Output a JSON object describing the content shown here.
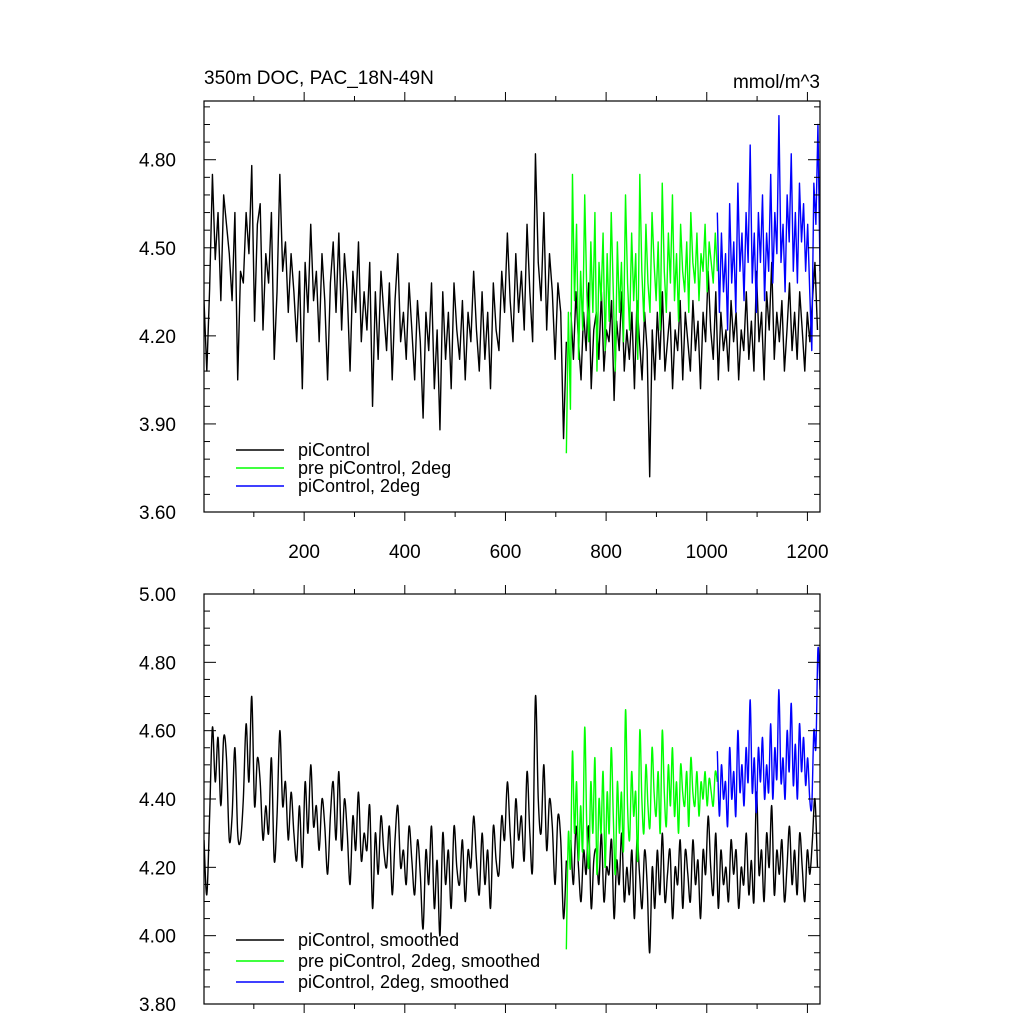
{
  "figure": {
    "title_left": "350m DOC, PAC_18N-49N",
    "title_right": "mmol/m^3"
  },
  "chart_data": [
    {
      "type": "line",
      "xlim": [
        1,
        1225
      ],
      "ylim": [
        3.6,
        5.0
      ],
      "x_ticks": [
        200,
        400,
        600,
        800,
        1000,
        1200
      ],
      "y_ticks": [
        3.6,
        3.9,
        4.2,
        4.5,
        4.8
      ],
      "y_tick_labels": [
        "3.60",
        "3.90",
        "4.20",
        "4.50",
        "4.80"
      ],
      "show_x_tick_labels": true,
      "series": [
        {
          "name": "piControl",
          "color": "#000000",
          "x_start": 1,
          "values": [
            4.32,
            4.08,
            4.36,
            4.75,
            4.46,
            4.62,
            4.32,
            4.68,
            4.58,
            4.48,
            4.32,
            4.62,
            4.05,
            4.42,
            4.38,
            4.62,
            4.48,
            4.78,
            4.25,
            4.58,
            4.65,
            4.22,
            4.48,
            4.38,
            4.62,
            4.12,
            4.35,
            4.75,
            4.42,
            4.52,
            4.28,
            4.48,
            4.35,
            4.18,
            4.42,
            4.02,
            4.45,
            4.28,
            4.58,
            4.32,
            4.42,
            4.18,
            4.48,
            4.32,
            4.05,
            4.38,
            4.52,
            4.28,
            4.55,
            4.22,
            4.48,
            4.35,
            4.08,
            4.42,
            4.28,
            4.52,
            4.18,
            4.35,
            4.22,
            4.45,
            3.96,
            4.35,
            4.12,
            4.42,
            4.28,
            4.15,
            4.38,
            4.05,
            4.32,
            4.48,
            4.18,
            4.28,
            4.12,
            4.38,
            4.22,
            4.05,
            4.32,
            4.18,
            3.92,
            4.28,
            4.15,
            4.38,
            4.02,
            4.22,
            3.88,
            4.35,
            4.12,
            4.28,
            4.02,
            4.38,
            4.22,
            4.12,
            4.32,
            4.05,
            4.28,
            4.18,
            4.42,
            4.22,
            4.08,
            4.35,
            4.12,
            4.28,
            4.02,
            4.38,
            4.22,
            4.15,
            4.42,
            4.28,
            4.55,
            4.32,
            4.18,
            4.48,
            4.28,
            4.42,
            4.22,
            4.58,
            4.35,
            4.18,
            4.82,
            4.45,
            4.32,
            4.62,
            4.22,
            4.48,
            4.35,
            4.12,
            4.38,
            4.28,
            3.85,
            4.18
          ],
          "smooth": false
        },
        {
          "name": "piControl",
          "color": "#000000",
          "x_start": 730,
          "values": [
            4.28,
            4.12,
            4.35,
            4.18,
            4.05,
            4.28,
            4.15,
            4.38,
            4.02,
            4.22,
            4.28,
            4.12,
            4.35,
            4.08,
            4.22,
            4.18,
            4.32,
            3.98,
            4.25,
            4.15,
            4.35,
            4.08,
            4.22,
            4.12,
            4.28,
            4.02,
            4.32,
            4.18,
            4.05,
            4.28,
            4.15,
            3.72,
            4.22,
            4.05,
            4.28,
            4.12,
            4.35,
            4.08,
            4.18,
            4.28,
            4.02,
            4.22,
            4.15,
            4.32,
            4.05,
            4.28,
            4.18,
            4.08,
            4.32,
            4.15,
            4.25,
            4.02,
            4.28,
            4.18,
            4.42,
            4.22,
            4.12,
            4.35,
            4.05,
            4.28,
            4.15,
            4.22,
            4.08,
            4.32,
            4.18,
            4.28,
            4.05,
            4.22,
            4.15,
            4.35,
            4.12,
            4.25,
            4.08,
            4.42,
            4.18,
            4.28,
            4.05,
            4.35,
            4.22,
            4.45,
            4.12,
            4.28,
            4.18,
            4.32,
            4.08,
            4.22,
            4.38,
            4.15,
            4.28,
            4.12,
            4.35,
            4.22,
            4.08,
            4.28,
            4.18,
            4.32,
            4.45,
            4.22
          ],
          "smooth": false
        },
        {
          "name": "pre piControl, 2deg",
          "color": "#00ff00",
          "x_start": 721,
          "values": [
            3.8,
            4.28,
            3.95,
            4.75,
            4.32,
            4.58,
            4.12,
            4.42,
            4.22,
            4.68,
            4.35,
            4.18,
            4.52,
            4.28,
            4.62,
            4.08,
            4.45,
            4.32,
            4.55,
            4.15,
            4.48,
            4.25,
            4.62,
            4.35,
            4.08,
            4.52,
            4.28,
            4.45,
            4.18,
            4.68,
            4.38,
            4.22,
            4.55,
            4.32,
            4.48,
            4.12,
            4.75,
            4.42,
            4.25,
            4.58,
            4.38,
            4.28,
            4.62,
            4.45,
            4.32,
            4.52,
            4.22,
            4.72,
            4.42,
            4.28,
            4.55,
            4.38,
            4.68,
            4.32,
            4.48,
            4.25,
            4.58,
            4.42,
            4.35,
            4.52,
            4.28,
            4.62,
            4.45,
            4.38,
            4.55,
            4.32,
            4.48,
            4.42,
            4.58,
            4.35,
            4.52,
            4.45,
            4.38,
            4.55,
            4.42
          ],
          "smooth": false
        },
        {
          "name": "piControl, 2deg",
          "color": "#0000ff",
          "x_start": 1021,
          "values": [
            4.62,
            4.28,
            4.55,
            4.35,
            4.48,
            4.22,
            4.65,
            4.38,
            4.52,
            4.28,
            4.72,
            4.42,
            4.55,
            4.32,
            4.62,
            4.45,
            4.85,
            4.38,
            4.55,
            4.28,
            4.62,
            4.45,
            4.68,
            4.32,
            4.55,
            4.42,
            4.75,
            4.38,
            4.62,
            4.48,
            4.95,
            4.45,
            4.58,
            4.35,
            4.68,
            4.52,
            4.82,
            4.42,
            4.62,
            4.38,
            4.72,
            4.52,
            4.65,
            4.42,
            4.58,
            4.35,
            4.15,
            4.72,
            4.58,
            4.92,
            4.42
          ],
          "smooth": false
        }
      ],
      "legend": {
        "placement": "bottom-left",
        "entries": [
          {
            "label": "piControl",
            "color": "#000000"
          },
          {
            "label": "pre piControl, 2deg",
            "color": "#00ff00"
          },
          {
            "label": "piControl, 2deg",
            "color": "#0000ff"
          }
        ]
      }
    },
    {
      "type": "line",
      "xlim": [
        1,
        1225
      ],
      "ylim": [
        3.8,
        5.0
      ],
      "x_ticks": [
        200,
        400,
        600,
        800,
        1000,
        1200
      ],
      "y_ticks": [
        3.8,
        4.0,
        4.2,
        4.4,
        4.6,
        4.8,
        5.0
      ],
      "y_tick_labels": [
        "3.80",
        "4.00",
        "4.20",
        "4.40",
        "4.60",
        "4.80",
        "5.00"
      ],
      "show_x_tick_labels": false,
      "series": [
        {
          "name": "piControl, smoothed",
          "color": "#000000",
          "x_start": 1,
          "values": [
            4.28,
            4.12,
            4.35,
            4.61,
            4.45,
            4.58,
            4.38,
            4.58,
            4.52,
            4.28,
            4.35,
            4.55,
            4.3,
            4.28,
            4.4,
            4.62,
            4.45,
            4.7,
            4.38,
            4.52,
            4.45,
            4.28,
            4.38,
            4.3,
            4.52,
            4.22,
            4.35,
            4.6,
            4.38,
            4.45,
            4.28,
            4.42,
            4.3,
            4.22,
            4.38,
            4.2,
            4.45,
            4.3,
            4.5,
            4.32,
            4.38,
            4.25,
            4.4,
            4.32,
            4.18,
            4.35,
            4.45,
            4.28,
            4.48,
            4.25,
            4.4,
            4.3,
            4.15,
            4.35,
            4.25,
            4.42,
            4.22,
            4.3,
            4.25,
            4.38,
            4.08,
            4.3,
            4.18,
            4.35,
            4.25,
            4.2,
            4.32,
            4.12,
            4.28,
            4.38,
            4.2,
            4.25,
            4.15,
            4.32,
            4.22,
            4.12,
            4.28,
            4.18,
            4.02,
            4.25,
            4.15,
            4.32,
            4.08,
            4.22,
            4.0,
            4.3,
            4.15,
            4.25,
            4.08,
            4.32,
            4.2,
            4.15,
            4.28,
            4.1,
            4.25,
            4.2,
            4.35,
            4.22,
            4.12,
            4.3,
            4.15,
            4.25,
            4.08,
            4.32,
            4.22,
            4.18,
            4.35,
            4.28,
            4.45,
            4.3,
            4.2,
            4.4,
            4.28,
            4.35,
            4.22,
            4.48,
            4.3,
            4.2,
            4.7,
            4.4,
            4.3,
            4.5,
            4.25,
            4.4,
            4.32,
            4.15,
            4.35,
            4.28,
            4.05,
            4.22
          ],
          "smooth": true
        },
        {
          "name": "piControl, smoothed",
          "color": "#000000",
          "x_start": 730,
          "values": [
            4.28,
            4.15,
            4.32,
            4.2,
            4.1,
            4.25,
            4.18,
            4.32,
            4.08,
            4.22,
            4.25,
            4.15,
            4.3,
            4.1,
            4.2,
            4.18,
            4.28,
            4.05,
            4.22,
            4.15,
            4.3,
            4.1,
            4.2,
            4.12,
            4.25,
            4.05,
            4.28,
            4.18,
            4.08,
            4.25,
            4.15,
            3.95,
            4.2,
            4.08,
            4.25,
            4.12,
            4.3,
            4.1,
            4.18,
            4.25,
            4.05,
            4.2,
            4.15,
            4.28,
            4.08,
            4.25,
            4.18,
            4.1,
            4.28,
            4.15,
            4.22,
            4.05,
            4.25,
            4.18,
            4.35,
            4.2,
            4.12,
            4.3,
            4.08,
            4.25,
            4.15,
            4.2,
            4.1,
            4.28,
            4.18,
            4.25,
            4.08,
            4.2,
            4.15,
            4.3,
            4.12,
            4.22,
            4.1,
            4.42,
            4.18,
            4.25,
            4.1,
            4.3,
            4.2,
            4.38,
            4.12,
            4.25,
            4.18,
            4.28,
            4.1,
            4.2,
            4.32,
            4.15,
            4.25,
            4.12,
            4.3,
            4.2,
            4.1,
            4.25,
            4.18,
            4.28,
            4.4,
            4.2
          ],
          "smooth": true
        },
        {
          "name": "pre piControl, 2deg, smoothed",
          "color": "#00ff00",
          "x_start": 721,
          "values": [
            3.96,
            4.3,
            4.2,
            4.54,
            4.3,
            4.45,
            4.22,
            4.38,
            4.25,
            4.61,
            4.32,
            4.2,
            4.45,
            4.3,
            4.52,
            4.18,
            4.4,
            4.3,
            4.48,
            4.2,
            4.42,
            4.3,
            4.55,
            4.35,
            4.18,
            4.45,
            4.3,
            4.42,
            4.25,
            4.66,
            4.38,
            4.28,
            4.48,
            4.35,
            4.42,
            4.22,
            4.6,
            4.4,
            4.3,
            4.5,
            4.38,
            4.32,
            4.55,
            4.42,
            4.35,
            4.48,
            4.3,
            4.6,
            4.42,
            4.32,
            4.5,
            4.38,
            4.55,
            4.35,
            4.45,
            4.3,
            4.5,
            4.42,
            4.38,
            4.48,
            4.32,
            4.52,
            4.42,
            4.38,
            4.48,
            4.35,
            4.45,
            4.4,
            4.48,
            4.38,
            4.46,
            4.42,
            4.38,
            4.48,
            4.45
          ],
          "smooth": true
        },
        {
          "name": "piControl, 2deg, smoothed",
          "color": "#0000ff",
          "x_start": 1021,
          "values": [
            4.54,
            4.35,
            4.5,
            4.4,
            4.45,
            4.32,
            4.55,
            4.4,
            4.48,
            4.35,
            4.6,
            4.42,
            4.5,
            4.38,
            4.55,
            4.45,
            4.69,
            4.42,
            4.52,
            4.36,
            4.55,
            4.45,
            4.58,
            4.4,
            4.5,
            4.42,
            4.62,
            4.4,
            4.55,
            4.46,
            4.72,
            4.45,
            4.52,
            4.4,
            4.6,
            4.48,
            4.68,
            4.44,
            4.56,
            4.4,
            4.62,
            4.48,
            4.58,
            4.44,
            4.52,
            4.4,
            4.38,
            4.6,
            4.55,
            4.84,
            4.72
          ],
          "smooth": true
        }
      ],
      "legend": {
        "placement": "bottom-left",
        "entries": [
          {
            "label": "piControl, smoothed",
            "color": "#000000"
          },
          {
            "label": "pre piControl, 2deg, smoothed",
            "color": "#00ff00"
          },
          {
            "label": "piControl, 2deg, smoothed",
            "color": "#0000ff"
          }
        ]
      }
    }
  ]
}
